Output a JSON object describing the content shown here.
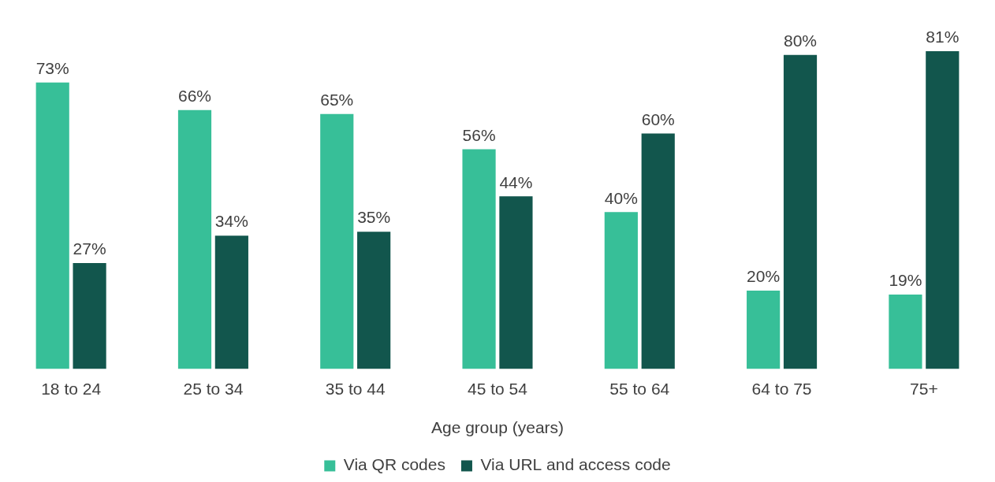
{
  "chart_data": {
    "type": "bar",
    "x_label": "Age group (years)",
    "categories": [
      "18 to 24",
      "25 to 34",
      "35 to 44",
      "45 to 54",
      "55 to 64",
      "64 to 75",
      "75+"
    ],
    "series": [
      {
        "name": "Via QR codes",
        "color": "#37bf98",
        "values": [
          73,
          66,
          65,
          56,
          40,
          20,
          19
        ],
        "value_labels": [
          "73%",
          "66%",
          "65%",
          "56%",
          "40%",
          "20%",
          "19%"
        ]
      },
      {
        "name": "Via URL and access code",
        "color": "#12564d",
        "values": [
          27,
          34,
          35,
          44,
          60,
          80,
          81
        ],
        "value_labels": [
          "27%",
          "34%",
          "35%",
          "44%",
          "60%",
          "80%",
          "81%"
        ]
      }
    ],
    "ylim": [
      0,
      88
    ],
    "grid": false,
    "legend": "bottom",
    "data_labels": true,
    "tick_labels": "x"
  }
}
